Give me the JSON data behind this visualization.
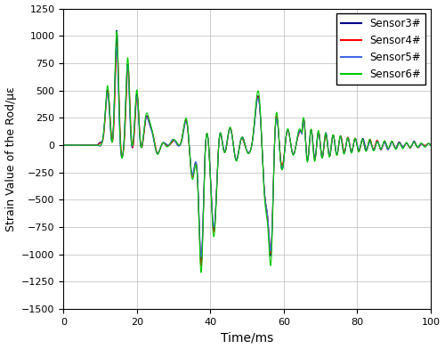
{
  "title": "",
  "xlabel": "Time/ms",
  "ylabel": "Strain Value of the Rod/με",
  "xlim": [
    0,
    100
  ],
  "ylim": [
    -1500,
    1250
  ],
  "yticks": [
    -1500,
    -1250,
    -1000,
    -750,
    -500,
    -250,
    0,
    250,
    500,
    750,
    1000,
    1250
  ],
  "xticks": [
    0,
    20,
    40,
    60,
    80,
    100
  ],
  "legend": [
    "Sensor3#",
    "Sensor4#",
    "Sensor5#",
    "Sensor6#"
  ],
  "colors": [
    "#00008B",
    "#FF0000",
    "#4169E1",
    "#00CC00"
  ],
  "linewidth": 0.8,
  "grid_color": "#BBBBBB",
  "background_color": "#FFFFFF",
  "dt": 0.02
}
